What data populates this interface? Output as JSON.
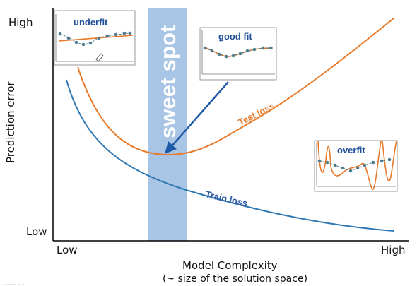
{
  "axes": {
    "y_label": "Prediction error",
    "y_high": "High",
    "y_low": "Low",
    "x_label": "Model Complexity",
    "x_sublabel": "(~ size of the solution space)",
    "x_low": "Low",
    "x_high": "High"
  },
  "regions": {
    "sweet_spot": "sweet spot"
  },
  "curves": {
    "test_loss": "Test loss",
    "train_loss": "Train loss"
  },
  "insets": {
    "underfit": "underfit",
    "good_fit": "good fit",
    "overfit": "overfit"
  },
  "colors": {
    "test": "#e87a2a",
    "train": "#2f78b4",
    "sweet": "#a9c5e6",
    "arrow": "#1f5aa6",
    "inset_title": "#1f4f99",
    "dot": "#4f7d8f"
  },
  "footer": {
    "credit": "...  ...  ...  ...  ..."
  }
}
